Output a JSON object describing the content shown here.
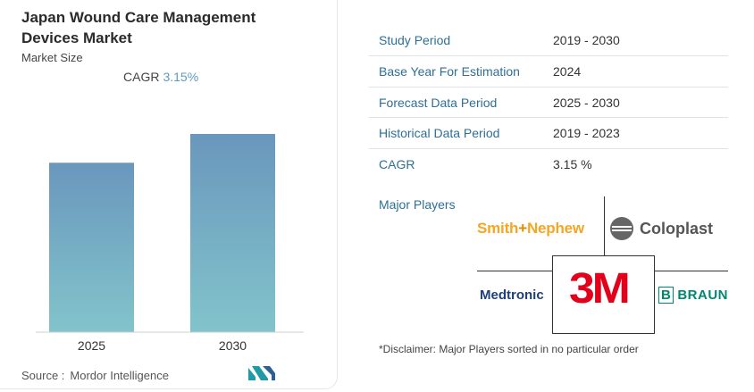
{
  "chart_data": {
    "type": "bar",
    "title": "Japan Wound Care Management Devices Market",
    "subtitle": "Market Size",
    "cagr_label": "CAGR",
    "cagr_value": "3.15%",
    "categories": [
      "2025",
      "2030"
    ],
    "values": [
      1.0,
      1.17
    ],
    "xlabel": "",
    "ylabel": "",
    "colors": {
      "bar_top": "#6a97bd",
      "bar_bottom": "#82c4cb"
    }
  },
  "source": {
    "label": "Source :",
    "name": "Mordor Intelligence"
  },
  "info_table": [
    {
      "label": "Study Period",
      "value": "2019 - 2030"
    },
    {
      "label": "Base Year For Estimation",
      "value": "2024"
    },
    {
      "label": "Forecast Data Period",
      "value": "2025 - 2030"
    },
    {
      "label": "Historical Data Period",
      "value": "2019 - 2023"
    },
    {
      "label": "CAGR",
      "value": "3.15 %"
    }
  ],
  "major_players": {
    "title": "Major Players",
    "logos": {
      "smith_pre": "Smith",
      "smith_amp": "+",
      "smith_post": "Nephew",
      "coloplast": "Coloplast",
      "medtronic": "Medtronic",
      "three_m": "3M",
      "bbraun_b": "B",
      "bbraun_text": "BRAUN"
    }
  },
  "disclaimer": "*Disclaimer: Major Players sorted in no particular order",
  "accent_color": "#2e6f95"
}
